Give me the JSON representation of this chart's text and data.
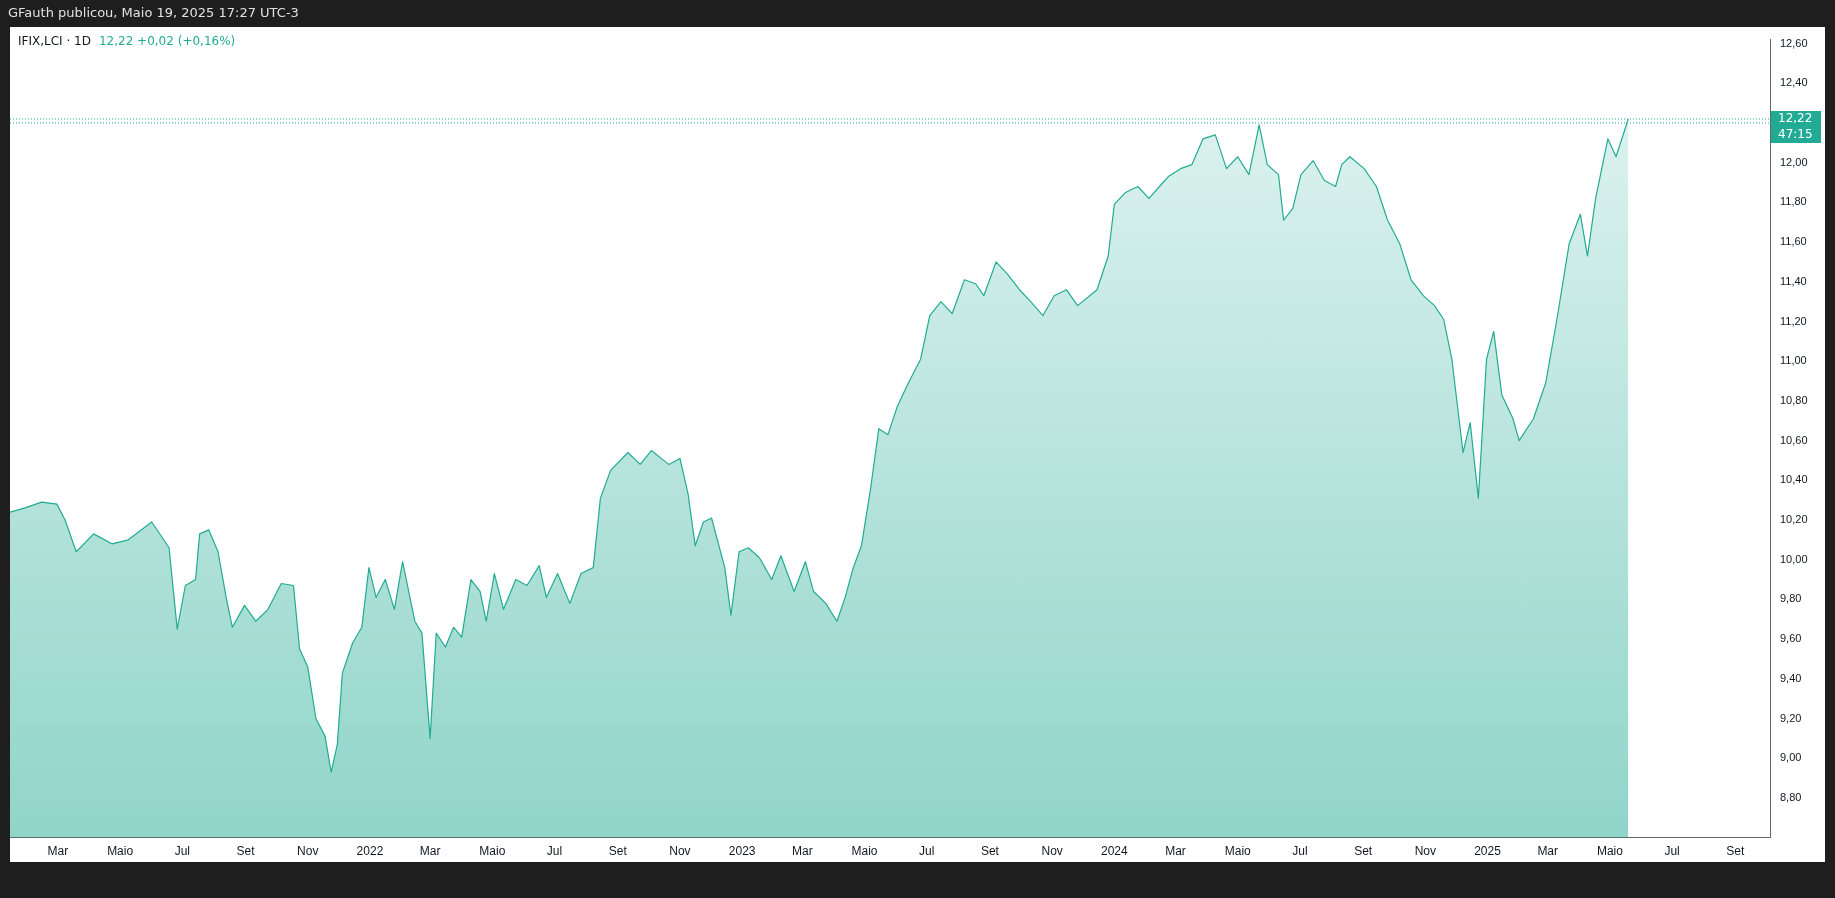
{
  "chart_data": {
    "type": "area",
    "title": "IFIX,LCI · 1D",
    "subtitle": "12,22 +0,02 (+0,16%)",
    "annotations": [
      "GFauth publicou, Maio 19, 2025 17:27 UTC-3",
      "47:15"
    ],
    "x": [
      "2021-01-13",
      "2021-01-27",
      "2021-02-13",
      "2021-02-28",
      "2021-03-08",
      "2021-03-19",
      "2021-04-05",
      "2021-04-23",
      "2021-05-09",
      "2021-06-01",
      "2021-06-18",
      "2021-06-26",
      "2021-07-04",
      "2021-07-14",
      "2021-07-18",
      "2021-07-27",
      "2021-08-05",
      "2021-08-13",
      "2021-08-19",
      "2021-08-31",
      "2021-09-11",
      "2021-09-23",
      "2021-10-06",
      "2021-10-18",
      "2021-10-24",
      "2021-11-01",
      "2021-11-09",
      "2021-11-18",
      "2021-11-24",
      "2021-11-30",
      "2021-12-05",
      "2021-12-15",
      "2021-12-24",
      "2021-12-31",
      "2022-01-07",
      "2022-01-16",
      "2022-01-25",
      "2022-02-02",
      "2022-02-14",
      "2022-02-21",
      "2022-03-01",
      "2022-03-07",
      "2022-03-16",
      "2022-03-24",
      "2022-04-01",
      "2022-04-10",
      "2022-04-19",
      "2022-04-25",
      "2022-05-03",
      "2022-05-12",
      "2022-05-24",
      "2022-06-04",
      "2022-06-16",
      "2022-06-23",
      "2022-07-04",
      "2022-07-16",
      "2022-07-27",
      "2022-08-08",
      "2022-08-15",
      "2022-08-25",
      "2022-09-11",
      "2022-09-23",
      "2022-10-04",
      "2022-10-21",
      "2022-11-01",
      "2022-11-09",
      "2022-11-16",
      "2022-11-24",
      "2022-12-02",
      "2022-12-15",
      "2022-12-21",
      "2022-12-29",
      "2023-01-07",
      "2023-01-18",
      "2023-01-30",
      "2023-02-08",
      "2023-02-21",
      "2023-03-04",
      "2023-03-12",
      "2023-03-24",
      "2023-04-04",
      "2023-04-12",
      "2023-04-20",
      "2023-04-28",
      "2023-05-07",
      "2023-05-15",
      "2023-05-24",
      "2023-06-02",
      "2023-06-13",
      "2023-06-25",
      "2023-07-04",
      "2023-07-15",
      "2023-07-26",
      "2023-08-07",
      "2023-08-18",
      "2023-08-26",
      "2023-09-07",
      "2023-09-18",
      "2023-09-30",
      "2023-10-11",
      "2023-10-23",
      "2023-11-03",
      "2023-11-15",
      "2023-11-26",
      "2023-12-15",
      "2023-12-26",
      "2024-01-01",
      "2024-01-12",
      "2024-01-24",
      "2024-02-04",
      "2024-02-16",
      "2024-02-23",
      "2024-03-06",
      "2024-03-17",
      "2024-03-28",
      "2024-04-09",
      "2024-04-20",
      "2024-05-01",
      "2024-05-12",
      "2024-05-22",
      "2024-05-30",
      "2024-06-10",
      "2024-06-15",
      "2024-06-24",
      "2024-07-02",
      "2024-07-14",
      "2024-07-25",
      "2024-08-05",
      "2024-08-11",
      "2024-08-19",
      "2024-09-02",
      "2024-09-14",
      "2024-09-25",
      "2024-10-07",
      "2024-10-18",
      "2024-10-30",
      "2024-11-10",
      "2024-11-19",
      "2024-11-27",
      "2024-12-08",
      "2024-12-15",
      "2024-12-23",
      "2024-12-31",
      "2025-01-07",
      "2025-01-15",
      "2025-01-26",
      "2025-02-01",
      "2025-02-15",
      "2025-02-27",
      "2025-03-10",
      "2025-03-22",
      "2025-04-02",
      "2025-04-09",
      "2025-04-17",
      "2025-04-29",
      "2025-05-07",
      "2025-05-19"
    ],
    "series": [
      {
        "color": "#22ab94",
        "values": [
          10.24,
          10.26,
          10.29,
          10.28,
          10.2,
          10.04,
          10.13,
          10.08,
          10.1,
          10.19,
          10.06,
          9.65,
          9.87,
          9.9,
          10.13,
          10.15,
          10.04,
          9.81,
          9.66,
          9.77,
          9.69,
          9.75,
          9.88,
          9.87,
          9.55,
          9.46,
          9.2,
          9.11,
          8.93,
          9.07,
          9.43,
          9.58,
          9.66,
          9.96,
          9.81,
          9.9,
          9.75,
          9.99,
          9.69,
          9.63,
          9.1,
          9.63,
          9.56,
          9.66,
          9.61,
          9.9,
          9.84,
          9.69,
          9.93,
          9.75,
          9.9,
          9.87,
          9.97,
          9.81,
          9.93,
          9.78,
          9.93,
          9.96,
          10.31,
          10.45,
          10.54,
          10.48,
          10.55,
          10.48,
          10.51,
          10.33,
          10.07,
          10.19,
          10.21,
          9.96,
          9.72,
          10.04,
          10.06,
          10.01,
          9.9,
          10.02,
          9.84,
          9.99,
          9.84,
          9.78,
          9.69,
          9.81,
          9.96,
          10.07,
          10.36,
          10.66,
          10.63,
          10.77,
          10.89,
          11.01,
          11.23,
          11.3,
          11.24,
          11.41,
          11.39,
          11.33,
          11.5,
          11.44,
          11.36,
          11.3,
          11.23,
          11.33,
          11.36,
          11.28,
          11.36,
          11.53,
          11.79,
          11.85,
          11.88,
          11.82,
          11.89,
          11.93,
          11.97,
          11.99,
          12.12,
          12.14,
          11.97,
          12.03,
          11.94,
          12.19,
          11.99,
          11.94,
          11.71,
          11.77,
          11.94,
          12.01,
          11.91,
          11.88,
          11.99,
          12.03,
          11.97,
          11.88,
          11.71,
          11.59,
          11.41,
          11.33,
          11.28,
          11.21,
          11.01,
          10.54,
          10.69,
          10.31,
          11.01,
          11.15,
          10.83,
          10.71,
          10.6,
          10.71,
          10.89,
          11.21,
          11.59,
          11.74,
          11.53,
          11.82,
          12.12,
          12.03,
          12.22
        ]
      }
    ],
    "xlim": [
      "2021-01-13",
      "2025-10-05"
    ],
    "xticks": [
      {
        "value": "2021-03-01",
        "label": "Mar"
      },
      {
        "value": "2021-05-01",
        "label": "Maio"
      },
      {
        "value": "2021-07-01",
        "label": "Jul"
      },
      {
        "value": "2021-09-01",
        "label": "Set"
      },
      {
        "value": "2021-11-01",
        "label": "Nov"
      },
      {
        "value": "2022-01-01",
        "label": "2022"
      },
      {
        "value": "2022-03-01",
        "label": "Mar"
      },
      {
        "value": "2022-05-01",
        "label": "Maio"
      },
      {
        "value": "2022-07-01",
        "label": "Jul"
      },
      {
        "value": "2022-09-01",
        "label": "Set"
      },
      {
        "value": "2022-11-01",
        "label": "Nov"
      },
      {
        "value": "2023-01-01",
        "label": "2023"
      },
      {
        "value": "2023-03-01",
        "label": "Mar"
      },
      {
        "value": "2023-05-01",
        "label": "Maio"
      },
      {
        "value": "2023-07-01",
        "label": "Jul"
      },
      {
        "value": "2023-09-01",
        "label": "Set"
      },
      {
        "value": "2023-11-01",
        "label": "Nov"
      },
      {
        "value": "2024-01-01",
        "label": "2024"
      },
      {
        "value": "2024-03-01",
        "label": "Mar"
      },
      {
        "value": "2024-05-01",
        "label": "Maio"
      },
      {
        "value": "2024-07-01",
        "label": "Jul"
      },
      {
        "value": "2024-09-01",
        "label": "Set"
      },
      {
        "value": "2024-11-01",
        "label": "Nov"
      },
      {
        "value": "2025-01-01",
        "label": "2025"
      },
      {
        "value": "2025-03-01",
        "label": "Mar"
      },
      {
        "value": "2025-05-01",
        "label": "Maio"
      },
      {
        "value": "2025-07-01",
        "label": "Jul"
      },
      {
        "value": "2025-09-01",
        "label": "Set"
      }
    ],
    "ylim": [
      8.6,
      12.62
    ],
    "yticks": [
      {
        "value": 8.8,
        "label": "8,80"
      },
      {
        "value": 9.0,
        "label": "9,00"
      },
      {
        "value": 9.2,
        "label": "9,20"
      },
      {
        "value": 9.4,
        "label": "9,40"
      },
      {
        "value": 9.6,
        "label": "9,60"
      },
      {
        "value": 9.8,
        "label": "9,80"
      },
      {
        "value": 10.0,
        "label": "10,00"
      },
      {
        "value": 10.2,
        "label": "10,20"
      },
      {
        "value": 10.4,
        "label": "10,40"
      },
      {
        "value": 10.6,
        "label": "10,60"
      },
      {
        "value": 10.8,
        "label": "10,80"
      },
      {
        "value": 11.0,
        "label": "11,00"
      },
      {
        "value": 11.2,
        "label": "11,20"
      },
      {
        "value": 11.4,
        "label": "11,40"
      },
      {
        "value": 11.6,
        "label": "11,60"
      },
      {
        "value": 11.8,
        "label": "11,80"
      },
      {
        "value": 12.0,
        "label": "12,00"
      },
      {
        "value": 12.4,
        "label": "12,40"
      },
      {
        "value": 12.6,
        "label": "12,60"
      }
    ],
    "ref_lines": [
      {
        "axis": "y",
        "value": 12.22,
        "label": "12,22",
        "color": "#22ab94",
        "line_style": "dotted"
      },
      {
        "axis": "y",
        "value": 12.2,
        "color": "#22ab94",
        "line_style": "dotted"
      }
    ],
    "grid": false,
    "legend": false
  }
}
